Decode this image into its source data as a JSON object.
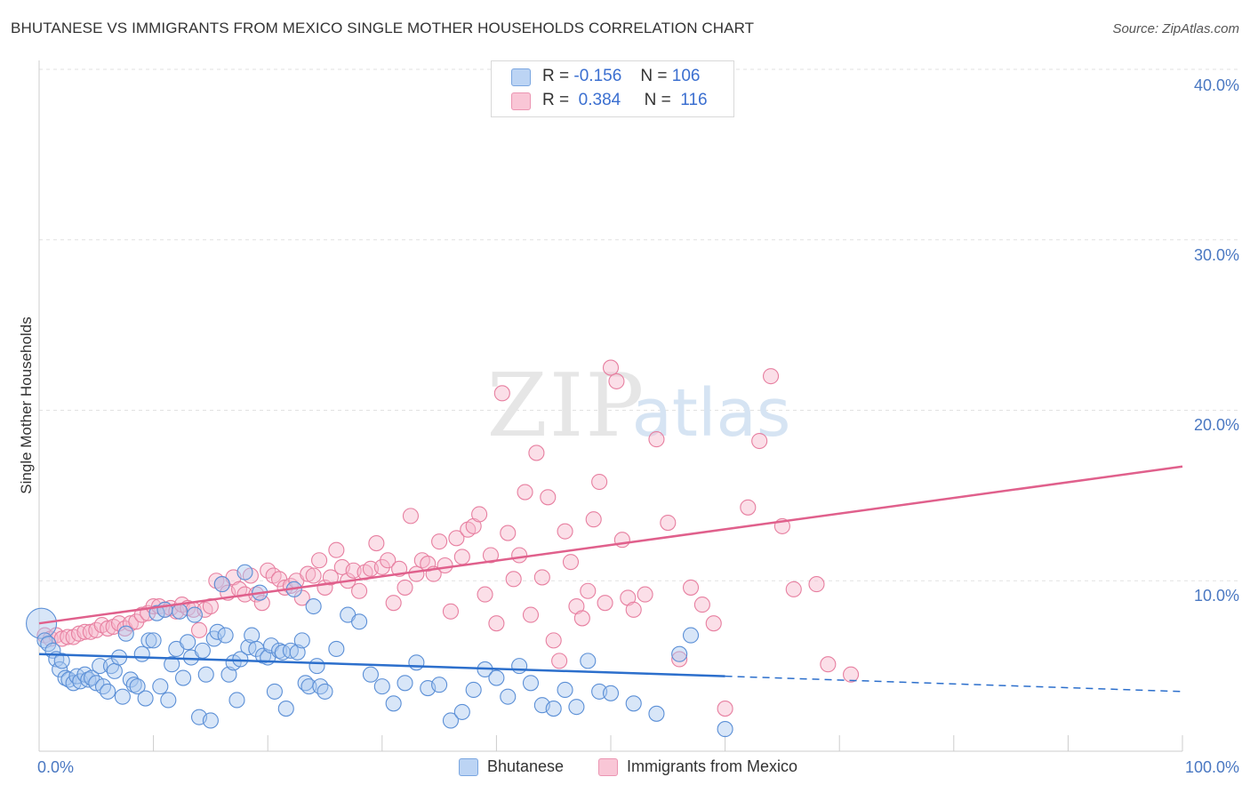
{
  "title": "BHUTANESE VS IMMIGRANTS FROM MEXICO SINGLE MOTHER HOUSEHOLDS CORRELATION CHART",
  "source": "Source: ZipAtlas.com",
  "watermark": {
    "zip": "ZIP",
    "atlas": "atlas"
  },
  "legend_top": {
    "r_label": "R =",
    "n_label": "N =",
    "rows": [
      {
        "r": "-0.156",
        "n": "106"
      },
      {
        "r": "0.384",
        "n": "116"
      }
    ]
  },
  "colors": {
    "blue_fill": "#a8c8f0",
    "blue_stroke": "#5b8fd6",
    "blue_line": "#2c6fcc",
    "pink_fill": "#f7b8cc",
    "pink_stroke": "#e77fa0",
    "pink_line": "#e0608c"
  },
  "chart_data": {
    "type": "scatter",
    "title": "BHUTANESE VS IMMIGRANTS FROM MEXICO SINGLE MOTHER HOUSEHOLDS CORRELATION CHART",
    "xlabel": "",
    "ylabel": "Single Mother Households",
    "xlim": [
      0,
      100
    ],
    "ylim": [
      0,
      40
    ],
    "x_tick_labels": [
      "0.0%",
      "100.0%"
    ],
    "y_ticks": [
      10,
      20,
      30,
      40
    ],
    "y_tick_labels": [
      "10.0%",
      "20.0%",
      "30.0%",
      "40.0%"
    ],
    "legend": [
      "Bhutanese",
      "Immigrants from Mexico"
    ],
    "series": [
      {
        "name": "Bhutanese",
        "r": -0.156,
        "n": 106,
        "trend": {
          "x0": 0,
          "y0": 5.7,
          "x1": 60,
          "y1": 4.4,
          "x_dashed_end": 100,
          "y_dashed_end": 3.5
        },
        "points": [
          [
            0.2,
            7.5
          ],
          [
            0.5,
            6.5
          ],
          [
            0.8,
            6.3
          ],
          [
            1.2,
            5.9
          ],
          [
            1.5,
            5.4
          ],
          [
            1.8,
            4.8
          ],
          [
            2,
            5.3
          ],
          [
            2.3,
            4.3
          ],
          [
            2.6,
            4.2
          ],
          [
            3,
            4.0
          ],
          [
            3.3,
            4.4
          ],
          [
            3.6,
            4.1
          ],
          [
            4,
            4.5
          ],
          [
            4.3,
            4.2
          ],
          [
            4.6,
            4.3
          ],
          [
            5,
            4.0
          ],
          [
            5.3,
            5.0
          ],
          [
            5.6,
            3.8
          ],
          [
            6,
            3.5
          ],
          [
            6.3,
            5.0
          ],
          [
            6.6,
            4.7
          ],
          [
            7,
            5.5
          ],
          [
            7.3,
            3.2
          ],
          [
            7.6,
            6.9
          ],
          [
            8,
            4.2
          ],
          [
            8.3,
            3.9
          ],
          [
            8.6,
            3.8
          ],
          [
            9,
            5.7
          ],
          [
            9.3,
            3.1
          ],
          [
            9.6,
            6.5
          ],
          [
            10,
            6.5
          ],
          [
            10.3,
            8.1
          ],
          [
            10.6,
            3.8
          ],
          [
            11,
            8.3
          ],
          [
            11.3,
            3.0
          ],
          [
            11.6,
            5.1
          ],
          [
            12,
            6.0
          ],
          [
            12.3,
            8.2
          ],
          [
            12.6,
            4.3
          ],
          [
            13,
            6.4
          ],
          [
            13.3,
            5.5
          ],
          [
            13.6,
            8.0
          ],
          [
            14,
            2.0
          ],
          [
            14.3,
            5.9
          ],
          [
            14.6,
            4.5
          ],
          [
            15,
            1.8
          ],
          [
            15.3,
            6.6
          ],
          [
            15.6,
            7.0
          ],
          [
            16,
            9.8
          ],
          [
            16.3,
            6.8
          ],
          [
            16.6,
            4.5
          ],
          [
            17,
            5.2
          ],
          [
            17.3,
            3.0
          ],
          [
            17.6,
            5.4
          ],
          [
            18,
            10.5
          ],
          [
            18.3,
            6.1
          ],
          [
            18.6,
            6.8
          ],
          [
            19,
            6.0
          ],
          [
            19.3,
            9.3
          ],
          [
            19.6,
            5.6
          ],
          [
            20,
            5.5
          ],
          [
            20.3,
            6.2
          ],
          [
            20.6,
            3.5
          ],
          [
            21,
            5.9
          ],
          [
            21.3,
            5.8
          ],
          [
            21.6,
            2.5
          ],
          [
            22,
            5.9
          ],
          [
            22.3,
            9.5
          ],
          [
            22.6,
            5.8
          ],
          [
            23,
            6.5
          ],
          [
            23.3,
            4.0
          ],
          [
            23.6,
            3.8
          ],
          [
            24,
            8.5
          ],
          [
            24.3,
            5.0
          ],
          [
            24.6,
            3.8
          ],
          [
            25,
            3.5
          ],
          [
            26,
            6.0
          ],
          [
            27,
            8.0
          ],
          [
            28,
            7.6
          ],
          [
            29,
            4.5
          ],
          [
            30,
            3.8
          ],
          [
            31,
            2.8
          ],
          [
            32,
            4.0
          ],
          [
            33,
            5.2
          ],
          [
            34,
            3.7
          ],
          [
            35,
            3.9
          ],
          [
            36,
            1.8
          ],
          [
            37,
            2.3
          ],
          [
            38,
            3.6
          ],
          [
            39,
            4.8
          ],
          [
            40,
            4.3
          ],
          [
            41,
            3.2
          ],
          [
            42,
            5.0
          ],
          [
            43,
            4.0
          ],
          [
            44,
            2.7
          ],
          [
            45,
            2.5
          ],
          [
            46,
            3.6
          ],
          [
            47,
            2.6
          ],
          [
            48,
            5.3
          ],
          [
            49,
            3.5
          ],
          [
            50,
            3.4
          ],
          [
            52,
            2.8
          ],
          [
            54,
            2.2
          ],
          [
            56,
            5.7
          ],
          [
            57,
            6.8
          ],
          [
            60,
            1.3
          ]
        ]
      },
      {
        "name": "Immigrants from Mexico",
        "r": 0.384,
        "n": 116,
        "trend": {
          "x0": 0,
          "y0": 7.5,
          "x1": 100,
          "y1": 16.7
        },
        "points": [
          [
            0.5,
            6.8
          ],
          [
            1,
            6.6
          ],
          [
            1.5,
            6.8
          ],
          [
            2,
            6.6
          ],
          [
            2.5,
            6.7
          ],
          [
            3,
            6.7
          ],
          [
            3.5,
            6.9
          ],
          [
            4,
            7.0
          ],
          [
            4.5,
            7.0
          ],
          [
            5,
            7.1
          ],
          [
            5.5,
            7.4
          ],
          [
            6,
            7.2
          ],
          [
            6.5,
            7.3
          ],
          [
            7,
            7.5
          ],
          [
            7.5,
            7.2
          ],
          [
            8,
            7.5
          ],
          [
            8.5,
            7.6
          ],
          [
            9,
            8.0
          ],
          [
            9.5,
            8.1
          ],
          [
            10,
            8.5
          ],
          [
            10.5,
            8.5
          ],
          [
            11,
            8.3
          ],
          [
            11.5,
            8.4
          ],
          [
            12,
            8.2
          ],
          [
            12.5,
            8.6
          ],
          [
            13,
            8.4
          ],
          [
            13.5,
            8.3
          ],
          [
            14,
            7.1
          ],
          [
            14.5,
            8.3
          ],
          [
            15,
            8.5
          ],
          [
            15.5,
            10.0
          ],
          [
            16,
            9.8
          ],
          [
            16.5,
            9.3
          ],
          [
            17,
            10.2
          ],
          [
            17.5,
            9.5
          ],
          [
            18,
            9.2
          ],
          [
            18.5,
            10.3
          ],
          [
            19,
            9.2
          ],
          [
            19.5,
            8.7
          ],
          [
            20,
            10.6
          ],
          [
            20.5,
            10.3
          ],
          [
            21,
            10.1
          ],
          [
            21.5,
            9.6
          ],
          [
            22,
            9.7
          ],
          [
            22.5,
            10.0
          ],
          [
            23,
            9.0
          ],
          [
            23.5,
            10.4
          ],
          [
            24,
            10.3
          ],
          [
            24.5,
            11.2
          ],
          [
            25,
            9.6
          ],
          [
            25.5,
            10.2
          ],
          [
            26,
            11.8
          ],
          [
            26.5,
            10.8
          ],
          [
            27,
            10.0
          ],
          [
            27.5,
            10.6
          ],
          [
            28,
            9.4
          ],
          [
            28.5,
            10.5
          ],
          [
            29,
            10.7
          ],
          [
            29.5,
            12.2
          ],
          [
            30,
            10.8
          ],
          [
            30.5,
            11.2
          ],
          [
            31,
            8.7
          ],
          [
            31.5,
            10.7
          ],
          [
            32,
            9.6
          ],
          [
            32.5,
            13.8
          ],
          [
            33,
            10.4
          ],
          [
            33.5,
            11.2
          ],
          [
            34,
            11.0
          ],
          [
            34.5,
            10.4
          ],
          [
            35,
            12.3
          ],
          [
            35.5,
            10.9
          ],
          [
            36,
            8.2
          ],
          [
            36.5,
            12.5
          ],
          [
            37,
            11.4
          ],
          [
            37.5,
            13.0
          ],
          [
            38,
            13.2
          ],
          [
            38.5,
            13.9
          ],
          [
            39,
            9.2
          ],
          [
            39.5,
            11.5
          ],
          [
            40,
            7.5
          ],
          [
            40.5,
            21.0
          ],
          [
            41,
            12.8
          ],
          [
            41.5,
            10.1
          ],
          [
            42,
            11.5
          ],
          [
            42.5,
            15.2
          ],
          [
            43,
            8.0
          ],
          [
            43.5,
            17.5
          ],
          [
            44,
            10.2
          ],
          [
            44.5,
            14.9
          ],
          [
            45,
            6.5
          ],
          [
            45.5,
            5.3
          ],
          [
            46,
            12.9
          ],
          [
            46.5,
            11.1
          ],
          [
            47,
            8.5
          ],
          [
            47.5,
            7.8
          ],
          [
            48,
            9.4
          ],
          [
            48.5,
            13.6
          ],
          [
            49,
            15.8
          ],
          [
            49.5,
            8.7
          ],
          [
            50,
            22.5
          ],
          [
            50.5,
            21.7
          ],
          [
            51,
            12.4
          ],
          [
            51.5,
            9.0
          ],
          [
            52,
            8.3
          ],
          [
            53,
            9.2
          ],
          [
            54,
            18.3
          ],
          [
            55,
            13.4
          ],
          [
            56,
            5.4
          ],
          [
            57,
            9.6
          ],
          [
            58,
            8.6
          ],
          [
            59,
            7.5
          ],
          [
            60,
            2.5
          ],
          [
            62,
            14.3
          ],
          [
            63,
            18.2
          ],
          [
            64,
            22.0
          ],
          [
            65,
            13.2
          ],
          [
            66,
            9.5
          ],
          [
            68,
            9.8
          ],
          [
            69,
            5.1
          ],
          [
            71,
            4.5
          ]
        ]
      }
    ]
  }
}
